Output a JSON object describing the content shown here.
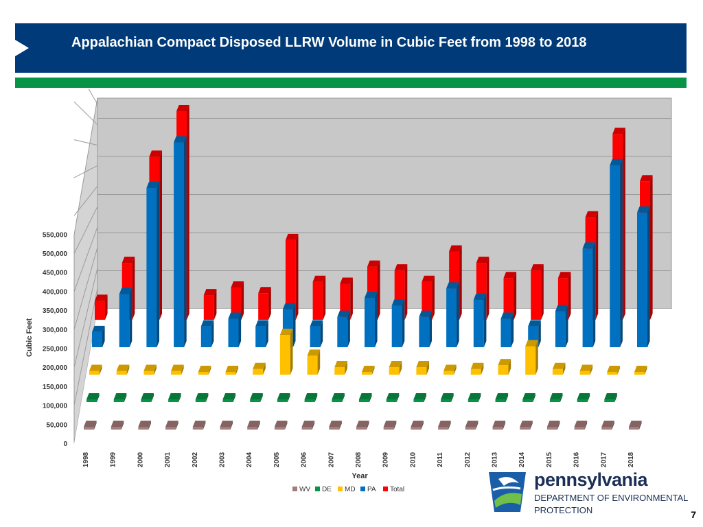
{
  "header": {
    "title": "Appalachian Compact Disposed LLRW Volume in Cubic Feet from 1998 to 2018"
  },
  "logo": {
    "name": "pennsylvania",
    "dept_line1": "DEPARTMENT OF ENVIRONMENTAL",
    "dept_line2": "PROTECTION"
  },
  "page_number": "7",
  "colors": {
    "header_bg": "#003a78",
    "accent_green": "#079447",
    "wv": "#a67c7c",
    "de": "#079447",
    "md": "#ffc000",
    "pa": "#0070c0",
    "total": "#ff0000"
  },
  "chart_data": {
    "type": "bar",
    "style": "3d-depth",
    "xlabel": "Year",
    "ylabel": "Cubic Feet",
    "ylim": [
      0,
      550000
    ],
    "yticks": [
      "0",
      "50,000",
      "100,000",
      "150,000",
      "200,000",
      "250,000",
      "300,000",
      "350,000",
      "400,000",
      "450,000",
      "500,000",
      "550,000"
    ],
    "categories": [
      "1998",
      "1999",
      "2000",
      "2001",
      "2002",
      "2003",
      "2004",
      "2005",
      "2006",
      "2007",
      "2008",
      "2009",
      "2010",
      "2011",
      "2012",
      "2013",
      "2014",
      "2015",
      "2016",
      "2017",
      "2018"
    ],
    "legend_position": "bottom",
    "series": [
      {
        "name": "WV",
        "values": [
          1000,
          1000,
          1000,
          1000,
          1000,
          1000,
          1000,
          1000,
          1000,
          1000,
          1000,
          1000,
          1000,
          1000,
          1000,
          1000,
          1000,
          1000,
          1000,
          1000,
          1000
        ]
      },
      {
        "name": "DE",
        "values": [
          1000,
          1000,
          1000,
          1000,
          1000,
          1000,
          1000,
          1000,
          1000,
          1000,
          1000,
          1000,
          1000,
          1000,
          1000,
          1000,
          1000,
          1000,
          1000,
          1000,
          null
        ]
      },
      {
        "name": "MD",
        "values": [
          10000,
          10000,
          10000,
          10000,
          5000,
          5000,
          15000,
          105000,
          50000,
          20000,
          5000,
          20000,
          20000,
          10000,
          15000,
          25000,
          75000,
          15000,
          10000,
          5000,
          5000
        ]
      },
      {
        "name": "PA",
        "values": [
          40000,
          140000,
          420000,
          540000,
          55000,
          75000,
          55000,
          100000,
          55000,
          80000,
          130000,
          110000,
          80000,
          155000,
          125000,
          75000,
          55000,
          95000,
          260000,
          480000,
          355000
        ]
      },
      {
        "name": "Total",
        "values": [
          50000,
          150000,
          430000,
          550000,
          65000,
          85000,
          70000,
          210000,
          100000,
          95000,
          140000,
          130000,
          100000,
          180000,
          150000,
          110000,
          130000,
          110000,
          270000,
          490000,
          365000
        ]
      }
    ]
  }
}
